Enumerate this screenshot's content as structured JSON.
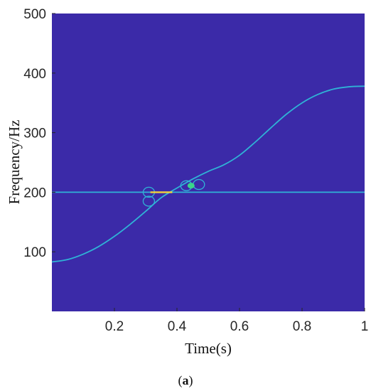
{
  "chart_data": {
    "type": "heatmap",
    "title": "",
    "xlabel": "Time(s)",
    "ylabel": "Frequency/Hz",
    "xlim": [
      0,
      1
    ],
    "ylim": [
      0,
      500
    ],
    "xticks": [
      0.2,
      0.4,
      0.6,
      0.8,
      1
    ],
    "xtick_labels": [
      "0.2",
      "0.4",
      "0.6",
      "0.8",
      "1"
    ],
    "yticks": [
      100,
      200,
      300,
      400,
      500
    ],
    "ytick_labels": [
      "100",
      "200",
      "300",
      "400",
      "500"
    ],
    "grid": false,
    "colormap": "parula",
    "background_color": "#3B2AA8",
    "ridge_color": "#2FB3D6",
    "peak_color": "#F5D23A",
    "series": [
      {
        "shape": "constant",
        "x": [
          0.0,
          0.1,
          0.2,
          0.3,
          0.4,
          0.5,
          0.6,
          0.7,
          0.8,
          0.9,
          1.0
        ],
        "y": [
          200,
          200,
          200,
          200,
          200,
          200,
          200,
          200,
          200,
          200,
          200
        ]
      },
      {
        "shape": "sweep",
        "x": [
          0.0,
          0.05,
          0.1,
          0.15,
          0.2,
          0.25,
          0.3,
          0.35,
          0.4,
          0.45,
          0.5,
          0.55,
          0.6,
          0.65,
          0.7,
          0.75,
          0.8,
          0.85,
          0.9,
          0.95,
          1.0
        ],
        "y": [
          83,
          87,
          96,
          109,
          126,
          146,
          168,
          191,
          207,
          222,
          235,
          246,
          262,
          284,
          308,
          331,
          350,
          364,
          373,
          377,
          378
        ]
      }
    ],
    "annotations": [
      {
        "type": "interference-loop",
        "x": 0.31,
        "y": 200
      },
      {
        "type": "interference-loop",
        "x": 0.31,
        "y": 185
      },
      {
        "type": "interference-loop",
        "x": 0.43,
        "y": 211
      },
      {
        "type": "interference-loop",
        "x": 0.47,
        "y": 213
      },
      {
        "type": "peak",
        "x": 0.445,
        "y": 211
      }
    ]
  },
  "caption": {
    "open": "(",
    "letter": "a",
    "close": ")"
  }
}
